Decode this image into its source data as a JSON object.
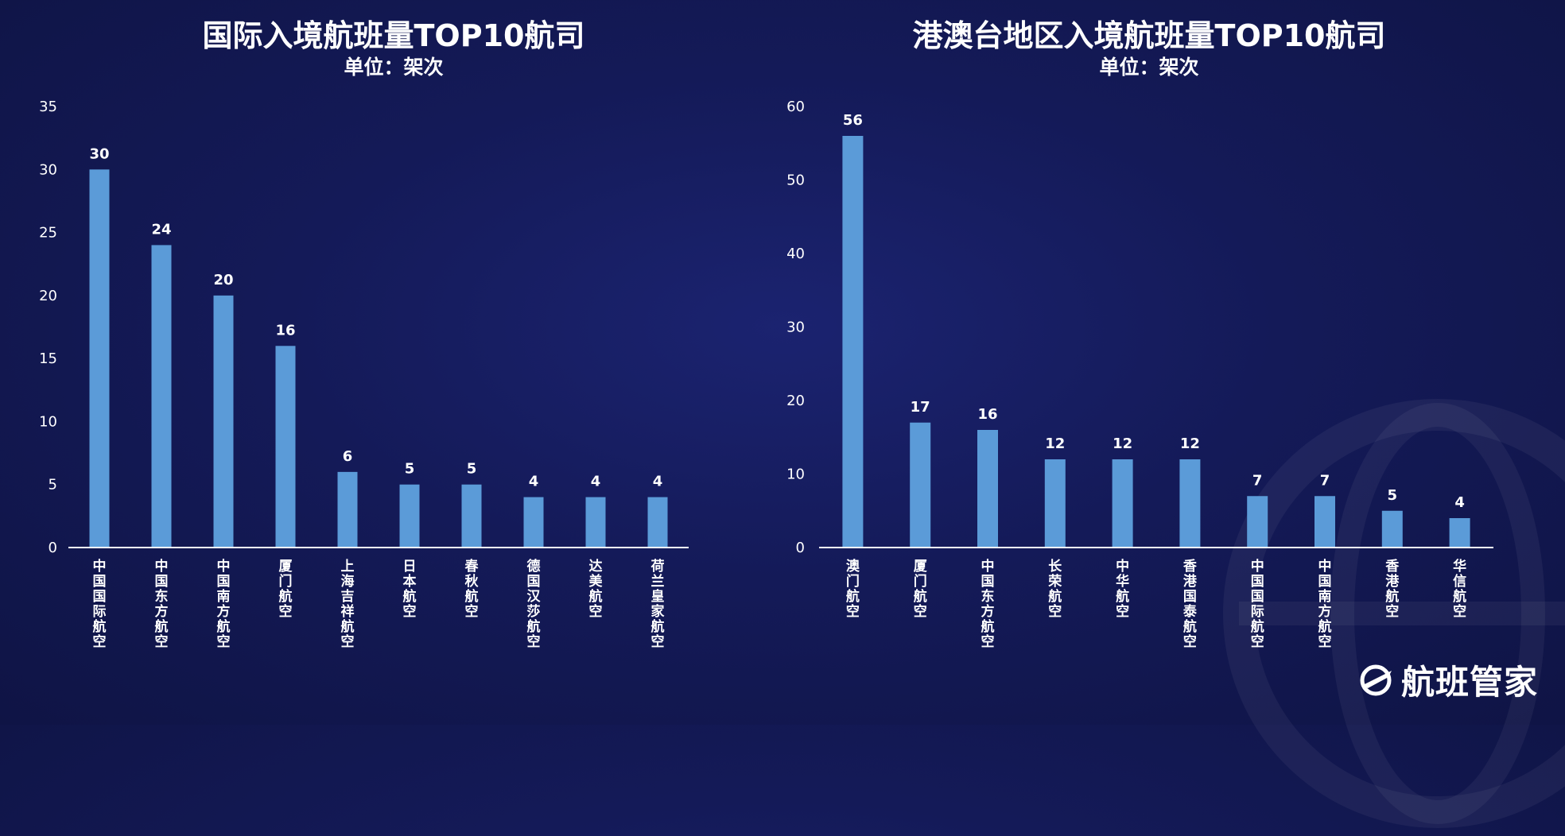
{
  "brand": {
    "name": "航班管家",
    "accent": "#5b9bd8"
  },
  "chart_data": [
    {
      "type": "bar",
      "title": "国际入境航班量TOP10航司",
      "subtitle": "单位：架次",
      "categories": [
        "中国国际航空",
        "中国东方航空",
        "中国南方航空",
        "厦门航空",
        "上海吉祥航空",
        "日本航空",
        "春秋航空",
        "德国汉莎航空",
        "达美航空",
        "荷兰皇家航空"
      ],
      "values": [
        30,
        24,
        20,
        16,
        6,
        5,
        5,
        4,
        4,
        4
      ],
      "yticks": [
        0,
        5,
        10,
        15,
        20,
        25,
        30,
        35
      ],
      "ylim": [
        0,
        35
      ],
      "grid": false,
      "bar_color": "#5b9bd8"
    },
    {
      "type": "bar",
      "title": "港澳台地区入境航班量TOP10航司",
      "subtitle": "单位：架次",
      "categories": [
        "澳门航空",
        "厦门航空",
        "中国东方航空",
        "长荣航空",
        "中华航空",
        "香港国泰航空",
        "中国国际航空",
        "中国南方航空",
        "香港航空",
        "华信航空"
      ],
      "values": [
        56,
        17,
        16,
        12,
        12,
        12,
        7,
        7,
        5,
        4
      ],
      "yticks": [
        0,
        10,
        20,
        30,
        40,
        50,
        60
      ],
      "ylim": [
        0,
        60
      ],
      "grid": false,
      "bar_color": "#5b9bd8"
    }
  ]
}
